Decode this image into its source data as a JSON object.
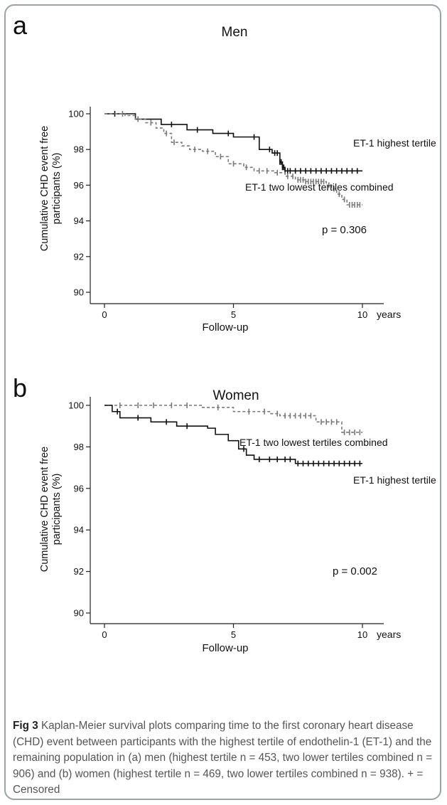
{
  "chart_data": [
    {
      "type": "line",
      "panel_label": "a",
      "title": "Men",
      "ylabel": "Cumulative CHD event free participants (%)",
      "ylabel_lines": [
        "Cumulative CHD event free",
        "participants (%)"
      ],
      "xlabel": "Follow-up",
      "x_unit": "years",
      "xlim": [
        0,
        10
      ],
      "ylim": [
        90,
        100
      ],
      "xticks": [
        0,
        5,
        10
      ],
      "yticks": [
        90,
        92,
        94,
        96,
        98,
        100
      ],
      "grid": false,
      "p_value": "p = 0.306",
      "series": [
        {
          "name": "ET-1 highest tertile",
          "style": "solid",
          "color": "#111111",
          "steps": [
            [
              0,
              100
            ],
            [
              1.2,
              99.7
            ],
            [
              2.2,
              99.4
            ],
            [
              3.2,
              99.1
            ],
            [
              4.2,
              98.9
            ],
            [
              5.0,
              98.7
            ],
            [
              6.0,
              98.0
            ],
            [
              6.5,
              97.8
            ],
            [
              6.8,
              97.3
            ],
            [
              6.9,
              97.0
            ],
            [
              7.0,
              96.8
            ],
            [
              10,
              96.8
            ]
          ],
          "censored": [
            0.4,
            2.6,
            3.6,
            4.8,
            5.8,
            6.4,
            6.6,
            6.7,
            6.8,
            6.85,
            6.9,
            6.95,
            7.0,
            7.1,
            7.2,
            7.4,
            7.6,
            7.8,
            8.0,
            8.2,
            8.4,
            8.6,
            8.8,
            9.0,
            9.2,
            9.4,
            9.6,
            9.8
          ]
        },
        {
          "name": "ET-1 two lowest tertiles combined",
          "style": "dashed",
          "color": "#7a7a7a",
          "steps": [
            [
              0,
              100
            ],
            [
              0.8,
              99.9
            ],
            [
              1.2,
              99.7
            ],
            [
              1.6,
              99.5
            ],
            [
              2.0,
              99.2
            ],
            [
              2.3,
              98.9
            ],
            [
              2.6,
              98.4
            ],
            [
              3.0,
              98.2
            ],
            [
              3.3,
              98.0
            ],
            [
              3.8,
              97.9
            ],
            [
              4.3,
              97.6
            ],
            [
              4.8,
              97.2
            ],
            [
              5.4,
              97.0
            ],
            [
              5.8,
              96.8
            ],
            [
              6.6,
              96.7
            ],
            [
              7.0,
              96.5
            ],
            [
              7.4,
              96.3
            ],
            [
              7.8,
              96.2
            ],
            [
              8.6,
              96.0
            ],
            [
              8.8,
              95.8
            ],
            [
              9.0,
              95.5
            ],
            [
              9.2,
              95.2
            ],
            [
              9.4,
              94.9
            ],
            [
              10,
              94.9
            ]
          ],
          "censored": [
            0.7,
            1.3,
            1.8,
            2.4,
            2.7,
            3.5,
            4.0,
            4.5,
            5.0,
            5.5,
            6.0,
            6.3,
            6.7,
            7.1,
            7.3,
            7.5,
            7.6,
            7.7,
            7.8,
            7.9,
            8.0,
            8.1,
            8.2,
            8.3,
            8.4,
            8.5,
            8.7,
            8.9,
            9.1,
            9.3,
            9.5,
            9.6,
            9.7,
            9.8,
            9.9
          ]
        }
      ]
    },
    {
      "type": "line",
      "panel_label": "b",
      "title": "Women",
      "ylabel": "Cumulative CHD event free participants (%)",
      "ylabel_lines": [
        "Cumulative CHD event free",
        "participants (%)"
      ],
      "xlabel": "Follow-up",
      "x_unit": "years",
      "xlim": [
        0,
        10
      ],
      "ylim": [
        90,
        100
      ],
      "xticks": [
        0,
        5,
        10
      ],
      "yticks": [
        90,
        92,
        94,
        96,
        98,
        100
      ],
      "grid": false,
      "p_value": "p = 0.002",
      "series": [
        {
          "name": "ET-1 two lowest tertiles combined",
          "style": "dashed",
          "color": "#7a7a7a",
          "steps": [
            [
              0,
              100
            ],
            [
              3.8,
              99.9
            ],
            [
              5.0,
              99.7
            ],
            [
              6.4,
              99.6
            ],
            [
              6.8,
              99.5
            ],
            [
              8.2,
              99.2
            ],
            [
              9.2,
              98.7
            ],
            [
              10,
              98.7
            ]
          ],
          "censored": [
            0.6,
            1.3,
            1.9,
            2.6,
            3.2,
            4.4,
            5.6,
            6.2,
            6.7,
            7.0,
            7.2,
            7.4,
            7.6,
            7.8,
            8.0,
            8.4,
            8.6,
            8.8,
            9.0,
            9.3,
            9.5,
            9.7,
            9.9
          ]
        },
        {
          "name": "ET-1 highest tertile",
          "style": "solid",
          "color": "#111111",
          "steps": [
            [
              0,
              100
            ],
            [
              0.3,
              99.7
            ],
            [
              0.6,
              99.4
            ],
            [
              1.8,
              99.2
            ],
            [
              2.8,
              99.0
            ],
            [
              4.0,
              98.9
            ],
            [
              4.3,
              98.6
            ],
            [
              4.8,
              98.3
            ],
            [
              5.2,
              97.9
            ],
            [
              5.5,
              97.6
            ],
            [
              5.8,
              97.4
            ],
            [
              7.4,
              97.2
            ],
            [
              10,
              97.2
            ]
          ],
          "censored": [
            0.5,
            1.3,
            2.4,
            3.2,
            5.4,
            6.0,
            6.4,
            6.7,
            7.0,
            7.2,
            7.5,
            7.7,
            7.9,
            8.1,
            8.3,
            8.5,
            8.7,
            8.9,
            9.1,
            9.3,
            9.5,
            9.7,
            9.9
          ]
        }
      ]
    }
  ],
  "caption": {
    "label": "Fig 3",
    "text": "Kaplan-Meier survival plots comparing time to the first coronary heart disease (CHD) event between participants with the highest tertile of endothelin-1 (ET-1) and the remaining population in (a) men (highest tertile n = 453, two lower tertiles combined n = 906) and (b) women (highest tertile n = 469, two lower tertiles combined n = 938). + = Censored"
  }
}
